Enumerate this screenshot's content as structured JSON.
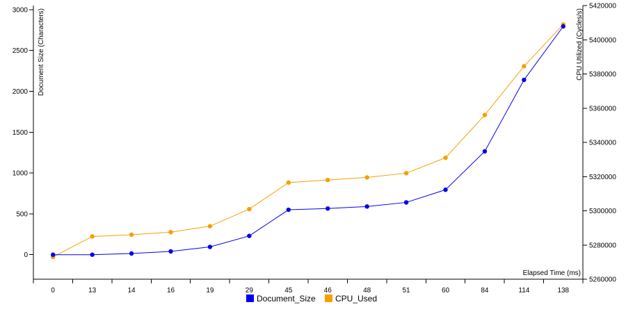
{
  "chart_data": {
    "type": "line",
    "categories": [
      "0",
      "13",
      "14",
      "16",
      "19",
      "29",
      "45",
      "46",
      "48",
      "51",
      "60",
      "84",
      "114",
      "138"
    ],
    "xlabel": "Elapsed Time (ms)",
    "y_left": {
      "label": "Document Size (Characters)",
      "ticks": [
        0,
        500,
        1000,
        1500,
        2000,
        2500,
        3000
      ],
      "range": [
        -300,
        3050
      ]
    },
    "y_right": {
      "label": "CPU Utilized (Cycles/s)",
      "ticks": [
        5260000,
        5280000,
        5300000,
        5320000,
        5340000,
        5360000,
        5380000,
        5400000,
        5420000
      ],
      "range": [
        5260000,
        5420000
      ]
    },
    "series": [
      {
        "name": "Document_Size",
        "axis": "left",
        "color": "#0000ee",
        "values": [
          0,
          0,
          15,
          40,
          95,
          230,
          550,
          565,
          590,
          640,
          795,
          1265,
          2140,
          2795
        ]
      },
      {
        "name": "CPU_Used",
        "axis": "right",
        "color": "#f5a000",
        "values": [
          5273000,
          5285000,
          5286000,
          5287500,
          5291000,
          5301000,
          5316500,
          5318000,
          5319500,
          5322000,
          5331000,
          5356000,
          5384500,
          5409000
        ]
      }
    ],
    "legend": {
      "placement": "bottom-center"
    },
    "grid": false
  }
}
